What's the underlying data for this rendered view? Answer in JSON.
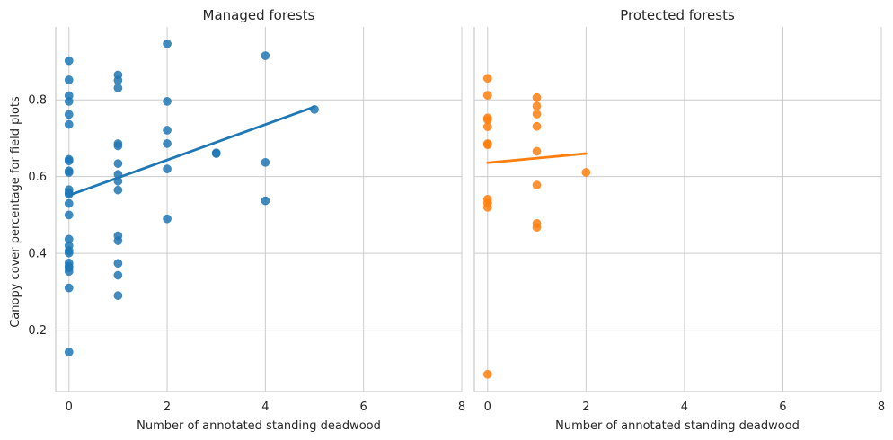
{
  "chart_data": {
    "type": "scatter",
    "ylabel": "Canopy cover percentage for field plots",
    "ylim": [
      0.04,
      0.99
    ],
    "yticks": [
      0.2,
      0.4,
      0.6,
      0.8
    ],
    "ytick_labels": [
      "0.2",
      "0.4",
      "0.6",
      "0.8"
    ],
    "grid": true,
    "panels": [
      {
        "title": "Managed forests",
        "xlabel": "Number of annotated standing deadwood",
        "xlim": [
          -0.27,
          8.0
        ],
        "xticks": [
          0,
          2,
          4,
          6,
          8
        ],
        "xtick_labels": [
          "0",
          "2",
          "4",
          "6",
          "8"
        ],
        "color": "#1f77b4",
        "points": [
          [
            0,
            0.902
          ],
          [
            0,
            0.852
          ],
          [
            0,
            0.811
          ],
          [
            0,
            0.796
          ],
          [
            0,
            0.762
          ],
          [
            0,
            0.736
          ],
          [
            0,
            0.645
          ],
          [
            0,
            0.641
          ],
          [
            0,
            0.615
          ],
          [
            0,
            0.611
          ],
          [
            0,
            0.566
          ],
          [
            0,
            0.558
          ],
          [
            0,
            0.554
          ],
          [
            0,
            0.53
          ],
          [
            0,
            0.5
          ],
          [
            0,
            0.437
          ],
          [
            0,
            0.42
          ],
          [
            0,
            0.407
          ],
          [
            0,
            0.401
          ],
          [
            0,
            0.375
          ],
          [
            0,
            0.366
          ],
          [
            0,
            0.362
          ],
          [
            0,
            0.353
          ],
          [
            0,
            0.31
          ],
          [
            0,
            0.143
          ],
          [
            1,
            0.865
          ],
          [
            1,
            0.851
          ],
          [
            1,
            0.831
          ],
          [
            1,
            0.686
          ],
          [
            1,
            0.68
          ],
          [
            1,
            0.634
          ],
          [
            1,
            0.606
          ],
          [
            1,
            0.588
          ],
          [
            1,
            0.565
          ],
          [
            1,
            0.446
          ],
          [
            1,
            0.433
          ],
          [
            1,
            0.374
          ],
          [
            1,
            0.343
          ],
          [
            1,
            0.29
          ],
          [
            2,
            0.946
          ],
          [
            2,
            0.796
          ],
          [
            2,
            0.721
          ],
          [
            2,
            0.686
          ],
          [
            2,
            0.62
          ],
          [
            2,
            0.49
          ],
          [
            3,
            0.662
          ],
          [
            3,
            0.66
          ],
          [
            4,
            0.915
          ],
          [
            4,
            0.637
          ],
          [
            4,
            0.537
          ],
          [
            5,
            0.775
          ]
        ],
        "trend": [
          [
            0,
            0.551
          ],
          [
            5,
            0.782
          ]
        ]
      },
      {
        "title": "Protected forests",
        "xlabel": "Number of annotated standing deadwood",
        "xlim": [
          -0.27,
          8.0
        ],
        "xticks": [
          0,
          2,
          4,
          6,
          8
        ],
        "xtick_labels": [
          "0",
          "2",
          "4",
          "6",
          "8"
        ],
        "color": "#ff7f0e",
        "points": [
          [
            0,
            0.856
          ],
          [
            0,
            0.812
          ],
          [
            0,
            0.753
          ],
          [
            0,
            0.748
          ],
          [
            0,
            0.73
          ],
          [
            0,
            0.686
          ],
          [
            0,
            0.683
          ],
          [
            0,
            0.541
          ],
          [
            0,
            0.531
          ],
          [
            0,
            0.52
          ],
          [
            0,
            0.085
          ],
          [
            1,
            0.806
          ],
          [
            1,
            0.784
          ],
          [
            1,
            0.763
          ],
          [
            1,
            0.731
          ],
          [
            1,
            0.666
          ],
          [
            1,
            0.578
          ],
          [
            1,
            0.478
          ],
          [
            1,
            0.468
          ],
          [
            2,
            0.611
          ]
        ],
        "trend": [
          [
            0,
            0.636
          ],
          [
            2,
            0.66
          ]
        ]
      }
    ]
  }
}
